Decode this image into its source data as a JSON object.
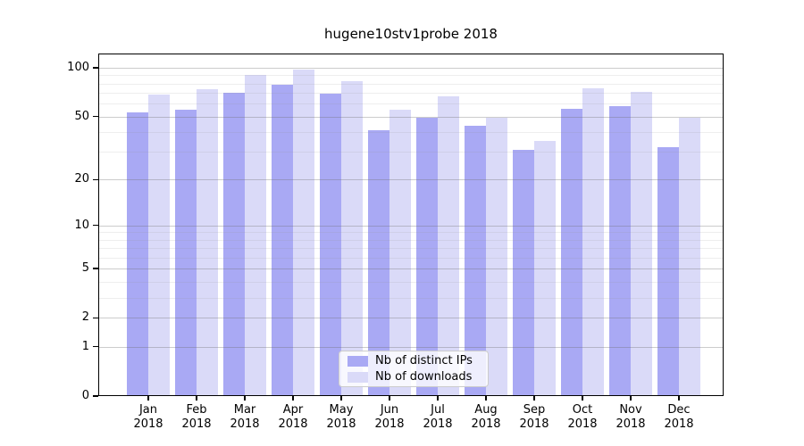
{
  "title": "hugene10stv1probe 2018",
  "chart_data": {
    "type": "bar",
    "title": "hugene10stv1probe 2018",
    "categories": [
      "Jan",
      "Feb",
      "Mar",
      "Apr",
      "May",
      "Jun",
      "Jul",
      "Aug",
      "Sep",
      "Oct",
      "Nov",
      "Dec"
    ],
    "year_label": "2018",
    "series": [
      {
        "name": "Nb of distinct IPs",
        "color": "#a9a9f4",
        "values": [
          53,
          55,
          70,
          79,
          69,
          41,
          49,
          44,
          31,
          56,
          58,
          32
        ]
      },
      {
        "name": "Nb of downloads",
        "color": "#dadaf8",
        "values": [
          68,
          74,
          90,
          97,
          83,
          55,
          67,
          49,
          35,
          75,
          71,
          49
        ]
      }
    ],
    "yscale": "log1p",
    "ylim": [
      0,
      121
    ],
    "yticks": [
      0,
      1,
      2,
      5,
      10,
      20,
      50,
      100
    ],
    "yticks_minor": [
      3,
      4,
      6,
      7,
      8,
      9,
      30,
      40,
      60,
      70,
      80,
      90
    ],
    "grid": true,
    "legend_position": "lower center inside",
    "colors": {
      "bar_dark": "#a9a9f4",
      "bar_light": "#dadaf8",
      "grid_major": "#cccccc",
      "grid_minor": "#ececec",
      "axis": "#000000"
    }
  }
}
